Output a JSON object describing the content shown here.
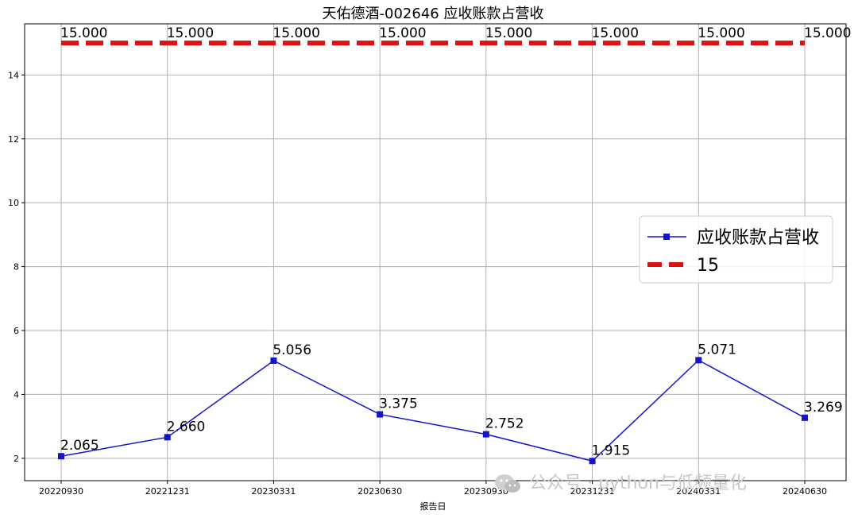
{
  "chart_data": {
    "type": "line",
    "title": "天佑德酒-002646 应收账款占营收",
    "xlabel": "报告日",
    "ylabel": "",
    "categories": [
      "20220930",
      "20221231",
      "20230331",
      "20230630",
      "20230930",
      "20231231",
      "20240331",
      "20240630"
    ],
    "ylim": [
      1.3,
      15.6
    ],
    "yticks": [
      2,
      4,
      6,
      8,
      10,
      12,
      14
    ],
    "grid": true,
    "legend_position": "right",
    "series": [
      {
        "name": "应收账款占营收",
        "values": [
          2.065,
          2.66,
          5.056,
          3.375,
          2.752,
          1.915,
          5.071,
          3.269
        ],
        "labels": [
          "2.065",
          "2.660",
          "5.056",
          "3.375",
          "2.752",
          "1.915",
          "5.071",
          "3.269"
        ],
        "color": "#1515c8",
        "style": "solid-square-marker"
      },
      {
        "name": "15",
        "values": [
          15,
          15,
          15,
          15,
          15,
          15,
          15,
          15
        ],
        "labels": [
          "15.000",
          "15.000",
          "15.000",
          "15.000",
          "15.000",
          "15.000",
          "15.000",
          "15.000"
        ],
        "color": "#dd1111",
        "style": "dashed-thick"
      }
    ]
  },
  "watermark": {
    "text": "公众号 · python与低频量化",
    "icon": "wechat-icon"
  }
}
